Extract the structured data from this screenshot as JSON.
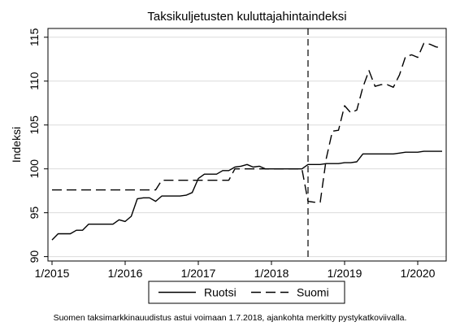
{
  "chart_data": {
    "type": "line",
    "title": "Taksikuljetusten kuluttajahintaindeksi",
    "xlabel": "",
    "ylabel": "Indeksi",
    "note": "Suomen taksimarkkinauudistus astui voimaan 1.7.2018, ajankohta merkitty pystykatkoviivalla.",
    "x_ticks": [
      "1/2015",
      "1/2016",
      "1/2017",
      "1/2018",
      "1/2019",
      "1/2020"
    ],
    "y_ticks": [
      90,
      95,
      100,
      105,
      110,
      115
    ],
    "xlim": [
      "2015-01",
      "2020-05"
    ],
    "ylim": [
      89.5,
      116
    ],
    "grid": "horizontal",
    "vline": "2018-07",
    "legend_position": "bottom",
    "series": [
      {
        "name": "Ruotsi",
        "style": "solid",
        "color": "#000000",
        "points": [
          [
            "2015-01",
            91.9
          ],
          [
            "2015-02",
            92.6
          ],
          [
            "2015-03",
            92.6
          ],
          [
            "2015-04",
            92.6
          ],
          [
            "2015-05",
            93.0
          ],
          [
            "2015-06",
            93.0
          ],
          [
            "2015-07",
            93.7
          ],
          [
            "2015-08",
            93.7
          ],
          [
            "2015-09",
            93.7
          ],
          [
            "2015-10",
            93.7
          ],
          [
            "2015-11",
            93.7
          ],
          [
            "2015-12",
            94.2
          ],
          [
            "2016-01",
            94.0
          ],
          [
            "2016-02",
            94.6
          ],
          [
            "2016-03",
            96.6
          ],
          [
            "2016-04",
            96.7
          ],
          [
            "2016-05",
            96.7
          ],
          [
            "2016-06",
            96.3
          ],
          [
            "2016-07",
            96.9
          ],
          [
            "2016-08",
            96.9
          ],
          [
            "2016-09",
            96.9
          ],
          [
            "2016-10",
            96.9
          ],
          [
            "2016-11",
            97.0
          ],
          [
            "2016-12",
            97.3
          ],
          [
            "2017-01",
            98.9
          ],
          [
            "2017-02",
            99.4
          ],
          [
            "2017-03",
            99.4
          ],
          [
            "2017-04",
            99.4
          ],
          [
            "2017-05",
            99.8
          ],
          [
            "2017-06",
            99.8
          ],
          [
            "2017-07",
            100.2
          ],
          [
            "2017-08",
            100.3
          ],
          [
            "2017-09",
            100.5
          ],
          [
            "2017-10",
            100.2
          ],
          [
            "2017-11",
            100.3
          ],
          [
            "2017-12",
            100.0
          ],
          [
            "2018-01",
            100.0
          ],
          [
            "2018-02",
            100.0
          ],
          [
            "2018-03",
            100.0
          ],
          [
            "2018-04",
            100.0
          ],
          [
            "2018-05",
            100.0
          ],
          [
            "2018-06",
            100.0
          ],
          [
            "2018-07",
            100.5
          ],
          [
            "2018-08",
            100.5
          ],
          [
            "2018-09",
            100.5
          ],
          [
            "2018-10",
            100.6
          ],
          [
            "2018-11",
            100.6
          ],
          [
            "2018-12",
            100.6
          ],
          [
            "2019-01",
            100.7
          ],
          [
            "2019-02",
            100.7
          ],
          [
            "2019-03",
            100.8
          ],
          [
            "2019-04",
            101.7
          ],
          [
            "2019-05",
            101.7
          ],
          [
            "2019-06",
            101.7
          ],
          [
            "2019-07",
            101.7
          ],
          [
            "2019-08",
            101.7
          ],
          [
            "2019-09",
            101.7
          ],
          [
            "2019-10",
            101.8
          ],
          [
            "2019-11",
            101.9
          ],
          [
            "2019-12",
            101.9
          ],
          [
            "2020-01",
            101.9
          ],
          [
            "2020-02",
            102.0
          ],
          [
            "2020-03",
            102.0
          ],
          [
            "2020-04",
            102.0
          ],
          [
            "2020-05",
            102.0
          ]
        ]
      },
      {
        "name": "Suomi",
        "style": "dashed",
        "color": "#000000",
        "points": [
          [
            "2015-01",
            97.6
          ],
          [
            "2015-02",
            97.6
          ],
          [
            "2015-03",
            97.6
          ],
          [
            "2015-04",
            97.6
          ],
          [
            "2015-05",
            97.6
          ],
          [
            "2015-06",
            97.6
          ],
          [
            "2015-07",
            97.6
          ],
          [
            "2015-08",
            97.6
          ],
          [
            "2015-09",
            97.6
          ],
          [
            "2015-10",
            97.6
          ],
          [
            "2015-11",
            97.6
          ],
          [
            "2015-12",
            97.6
          ],
          [
            "2016-01",
            97.6
          ],
          [
            "2016-02",
            97.6
          ],
          [
            "2016-03",
            97.6
          ],
          [
            "2016-04",
            97.6
          ],
          [
            "2016-05",
            97.6
          ],
          [
            "2016-06",
            97.6
          ],
          [
            "2016-07",
            98.7
          ],
          [
            "2016-08",
            98.7
          ],
          [
            "2016-09",
            98.7
          ],
          [
            "2016-10",
            98.7
          ],
          [
            "2016-11",
            98.7
          ],
          [
            "2016-12",
            98.7
          ],
          [
            "2017-01",
            98.7
          ],
          [
            "2017-02",
            98.7
          ],
          [
            "2017-03",
            98.7
          ],
          [
            "2017-04",
            98.7
          ],
          [
            "2017-05",
            98.7
          ],
          [
            "2017-06",
            98.7
          ],
          [
            "2017-07",
            100.0
          ],
          [
            "2017-08",
            100.0
          ],
          [
            "2017-09",
            100.0
          ],
          [
            "2017-10",
            100.0
          ],
          [
            "2017-11",
            100.0
          ],
          [
            "2017-12",
            100.0
          ],
          [
            "2018-01",
            100.0
          ],
          [
            "2018-02",
            100.0
          ],
          [
            "2018-03",
            100.0
          ],
          [
            "2018-04",
            100.0
          ],
          [
            "2018-05",
            100.0
          ],
          [
            "2018-06",
            100.0
          ],
          [
            "2018-07",
            96.3
          ],
          [
            "2018-08",
            96.2
          ],
          [
            "2018-09",
            96.2
          ],
          [
            "2018-10",
            101.2
          ],
          [
            "2018-11",
            104.3
          ],
          [
            "2018-12",
            104.4
          ],
          [
            "2019-01",
            107.2
          ],
          [
            "2019-02",
            106.4
          ],
          [
            "2019-03",
            106.7
          ],
          [
            "2019-04",
            109.3
          ],
          [
            "2019-05",
            111.2
          ],
          [
            "2019-06",
            109.4
          ],
          [
            "2019-07",
            109.6
          ],
          [
            "2019-08",
            109.6
          ],
          [
            "2019-09",
            109.3
          ],
          [
            "2019-10",
            110.7
          ],
          [
            "2019-11",
            112.8
          ],
          [
            "2019-12",
            113.0
          ],
          [
            "2020-01",
            112.7
          ],
          [
            "2020-02",
            114.3
          ],
          [
            "2020-03",
            114.2
          ],
          [
            "2020-04",
            113.9
          ],
          [
            "2020-05",
            113.8
          ]
        ]
      }
    ]
  }
}
